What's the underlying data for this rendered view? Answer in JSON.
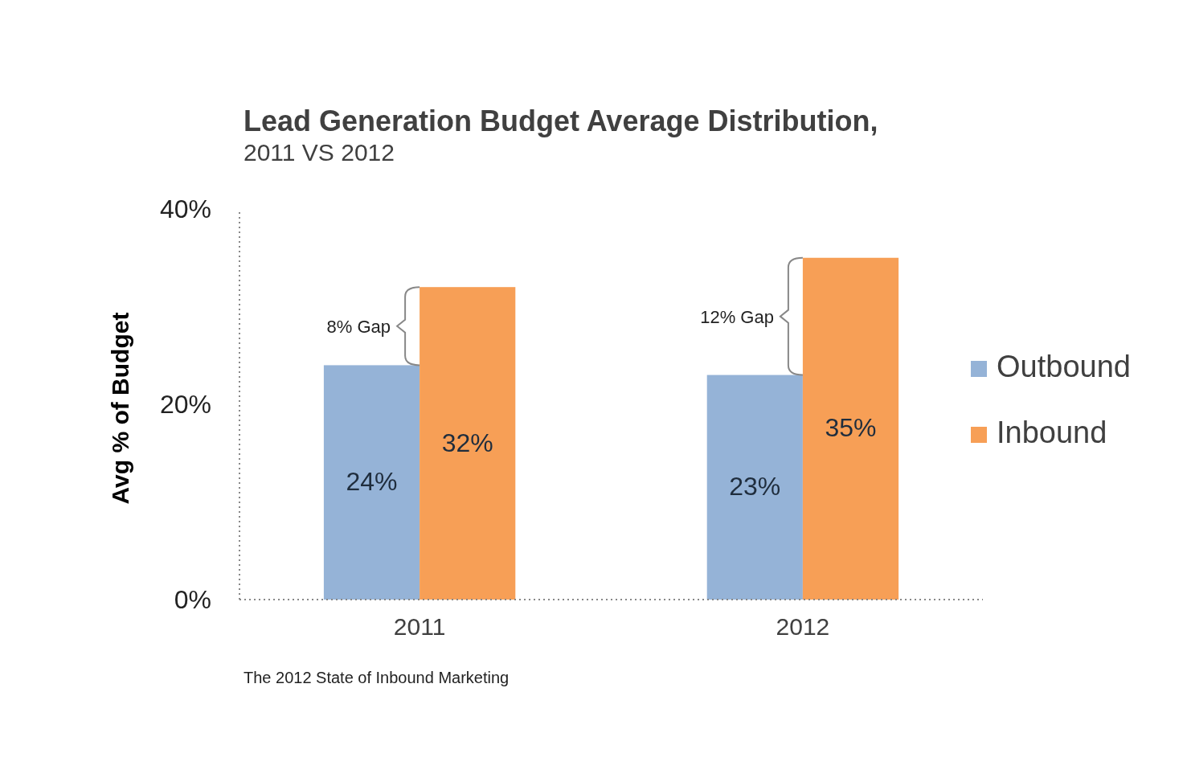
{
  "chart_data": {
    "type": "bar",
    "title": "Lead Generation Budget Average Distribution,",
    "subtitle": "2011 VS 2012",
    "ylabel": "Avg % of Budget",
    "categories": [
      "2011",
      "2012"
    ],
    "series": [
      {
        "name": "Outbound",
        "color": "#95b3d7",
        "values": [
          24,
          23
        ],
        "value_labels": [
          "24%",
          "23%"
        ]
      },
      {
        "name": "Inbound",
        "color": "#f79f56",
        "values": [
          32,
          35
        ],
        "value_labels": [
          "32%",
          "35%"
        ]
      }
    ],
    "ylim": [
      0,
      40
    ],
    "yticks": [
      {
        "value": 0,
        "label": "0%"
      },
      {
        "value": 20,
        "label": "20%"
      },
      {
        "value": 40,
        "label": "40%"
      }
    ],
    "legend": "right",
    "grid": false,
    "annotations": [
      {
        "text": "8% Gap",
        "x": "2011",
        "y": 28
      },
      {
        "text": "12% Gap",
        "x": "2012",
        "y": 29
      },
      "The 2012 State of Inbound Marketing"
    ]
  }
}
